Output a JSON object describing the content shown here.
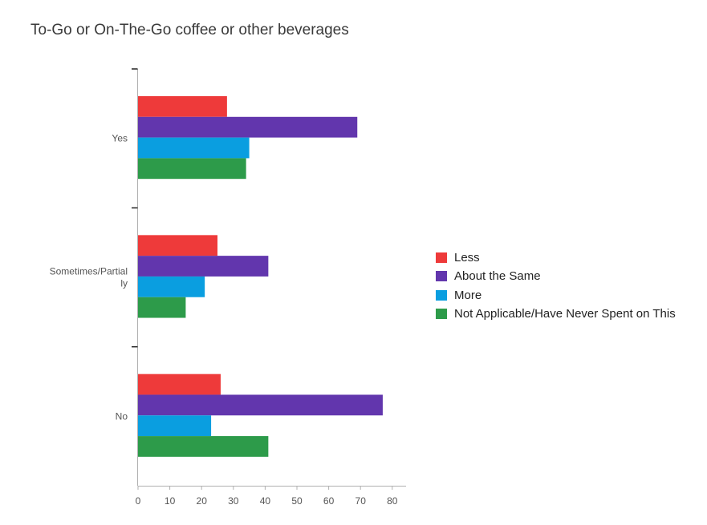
{
  "chart_data": {
    "type": "bar",
    "orientation": "horizontal",
    "title": "To-Go or On-The-Go coffee or other beverages",
    "categories": [
      [
        "Yes"
      ],
      [
        "Sometimes/Partial",
        "ly"
      ],
      [
        "No"
      ]
    ],
    "series": [
      {
        "name": "Less",
        "color": "#ee3a3a",
        "values": [
          28,
          25,
          26
        ]
      },
      {
        "name": "About the Same",
        "color": "#6236ad",
        "values": [
          69,
          41,
          77
        ]
      },
      {
        "name": "More",
        "color": "#0a9ee0",
        "values": [
          35,
          21,
          23
        ]
      },
      {
        "name": "Not Applicable/Have Never Spent on This",
        "color": "#2d9b4a",
        "values": [
          34,
          15,
          41
        ]
      }
    ],
    "xlim": [
      0,
      85
    ],
    "xticks": [
      0,
      10,
      20,
      30,
      40,
      50,
      60,
      70,
      80
    ],
    "xlabel": "",
    "ylabel": "",
    "grid": false,
    "legend_position": "right"
  }
}
